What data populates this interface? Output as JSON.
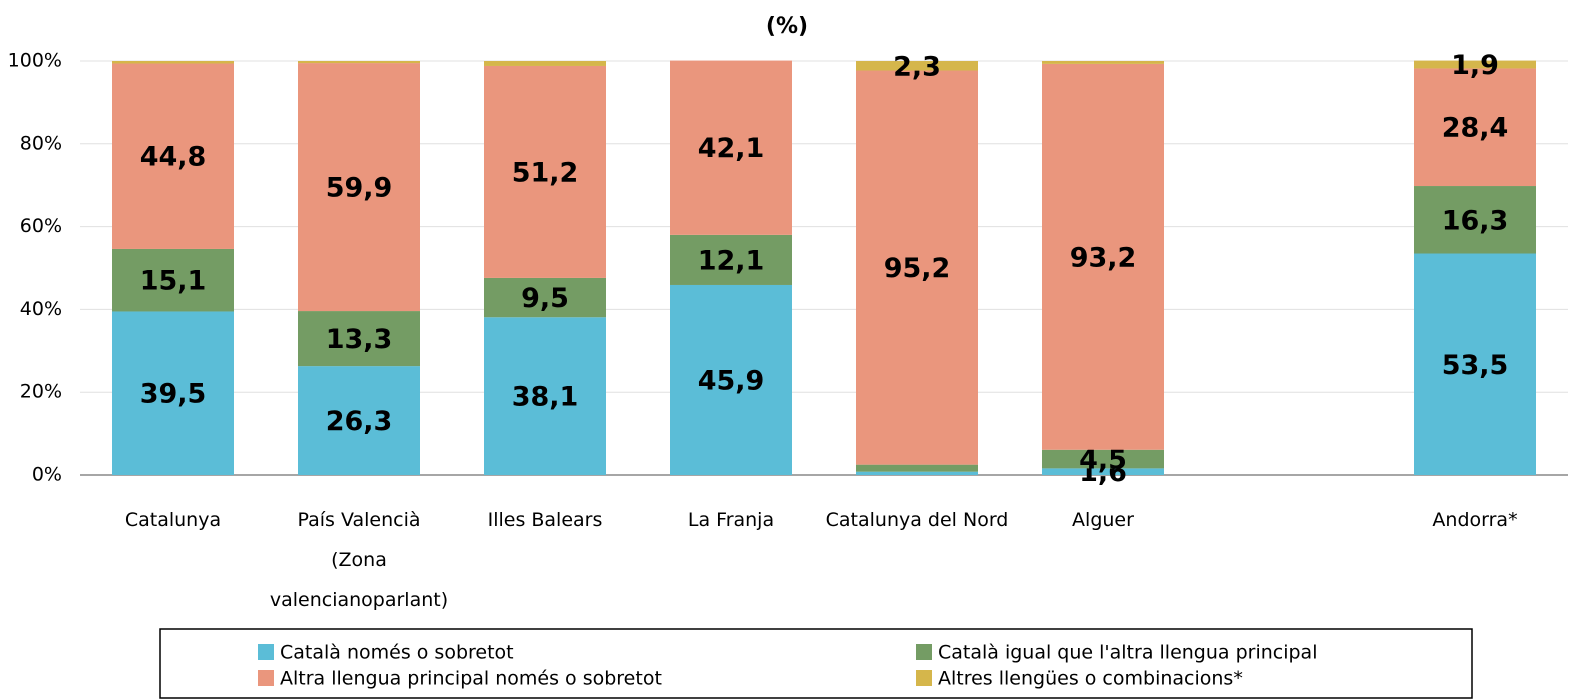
{
  "chart_data": {
    "type": "stacked_bar",
    "title": "(%)",
    "categories": [
      "Catalunya",
      "País Valencià\n(Zona\nvalencianoparlant)",
      "Illes Balears",
      "La Franja",
      "Catalunya del Nord",
      "Alguer",
      null,
      "Andorra*"
    ],
    "series": [
      {
        "name": "Català només o sobretot",
        "color": "#5bbdd7",
        "values": [
          39.5,
          26.3,
          38.1,
          45.9,
          0.8,
          1.6,
          null,
          53.5
        ],
        "value_labels": [
          "39,5",
          "26,3",
          "38,1",
          "45,9",
          null,
          "1,6",
          null,
          "53,5"
        ]
      },
      {
        "name": "Català igual que l'altra llengua principal",
        "color": "#749c64",
        "values": [
          15.1,
          13.3,
          9.5,
          12.1,
          1.7,
          4.5,
          null,
          16.3
        ],
        "value_labels": [
          "15,1",
          "13,3",
          "9,5",
          "12,1",
          null,
          "4,5",
          null,
          "16,3"
        ]
      },
      {
        "name": "Altra llengua principal només o sobretot",
        "color": "#ea967d",
        "values": [
          44.8,
          59.9,
          51.2,
          42.1,
          95.2,
          93.2,
          null,
          28.4
        ],
        "value_labels": [
          "44,8",
          "59,9",
          "51,2",
          "42,1",
          "95,2",
          "93,2",
          null,
          "28,4"
        ]
      },
      {
        "name": "Altres llengües o combinacions*",
        "color": "#d5b64b",
        "values": [
          0.6,
          0.5,
          1.2,
          0,
          2.3,
          0.7,
          null,
          1.9
        ],
        "value_labels": [
          null,
          null,
          null,
          null,
          "2,3",
          null,
          null,
          "1,9"
        ]
      }
    ],
    "ylim": [
      0,
      100
    ],
    "yticks": [
      {
        "value": 0,
        "label": "0%"
      },
      {
        "value": 20,
        "label": "20%"
      },
      {
        "value": 40,
        "label": "40%"
      },
      {
        "value": 60,
        "label": "60%"
      },
      {
        "value": 80,
        "label": "80%"
      },
      {
        "value": 100,
        "label": "100%"
      }
    ],
    "grid": true
  }
}
